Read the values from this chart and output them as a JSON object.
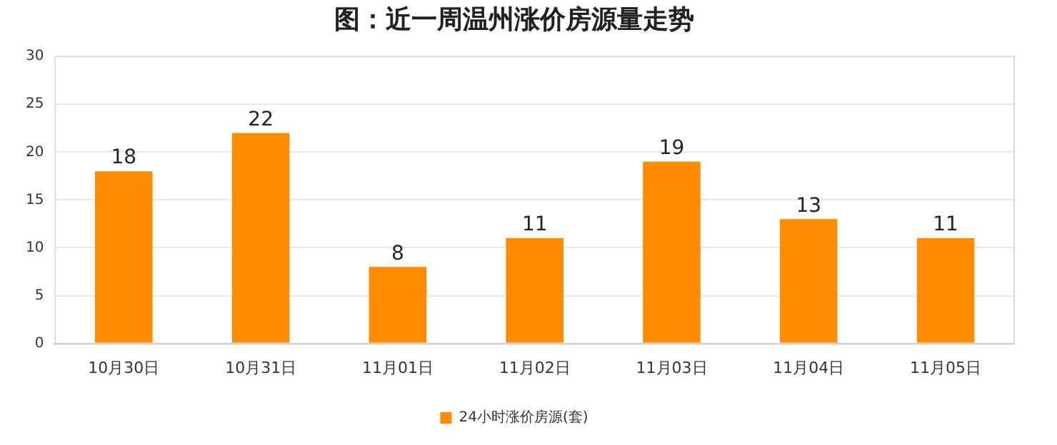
{
  "chart_data": {
    "type": "bar",
    "title": "图：近一周温州涨价房源量走势",
    "categories": [
      "10月30日",
      "10月31日",
      "11月01日",
      "11月02日",
      "11月03日",
      "11月04日",
      "11月05日"
    ],
    "series": [
      {
        "name": "24小时涨价房源(套)",
        "color": "#ff8c00",
        "values": [
          18,
          22,
          8,
          11,
          19,
          13,
          11
        ]
      }
    ],
    "ylim": [
      0,
      30
    ],
    "yticks": [
      0,
      5,
      10,
      15,
      20,
      25,
      30
    ],
    "grid": "y",
    "legend": "bottom",
    "data_labels": true
  }
}
